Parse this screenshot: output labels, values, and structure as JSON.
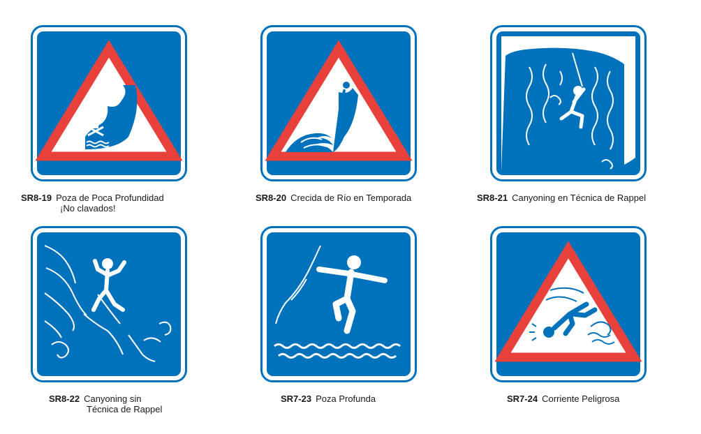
{
  "colors": {
    "blue": "#0072bc",
    "red": "#e8413c",
    "white": "#ffffff"
  },
  "signs": [
    {
      "code": "SR8-19",
      "line1": "Poza de Poca Profundidad",
      "line2": "¡No clavados!",
      "icon": "shallow-pool-no-diving-icon"
    },
    {
      "code": "SR8-20",
      "line1": "Crecida de Río en Temporada",
      "line2": "",
      "icon": "seasonal-river-flood-icon"
    },
    {
      "code": "SR8-21",
      "line1": "Canyoning en Técnica de Rappel",
      "line2": "",
      "icon": "canyoning-rappel-icon"
    },
    {
      "code": "SR8-22",
      "line1": "Canyoning sin",
      "line2": "Técnica de Rappel",
      "icon": "canyoning-no-rappel-icon"
    },
    {
      "code": "SR7-23",
      "line1": "Poza Profunda",
      "line2": "",
      "icon": "deep-pool-icon"
    },
    {
      "code": "SR7-24",
      "line1": "Corriente Peligrosa",
      "line2": "",
      "icon": "dangerous-current-icon"
    }
  ]
}
